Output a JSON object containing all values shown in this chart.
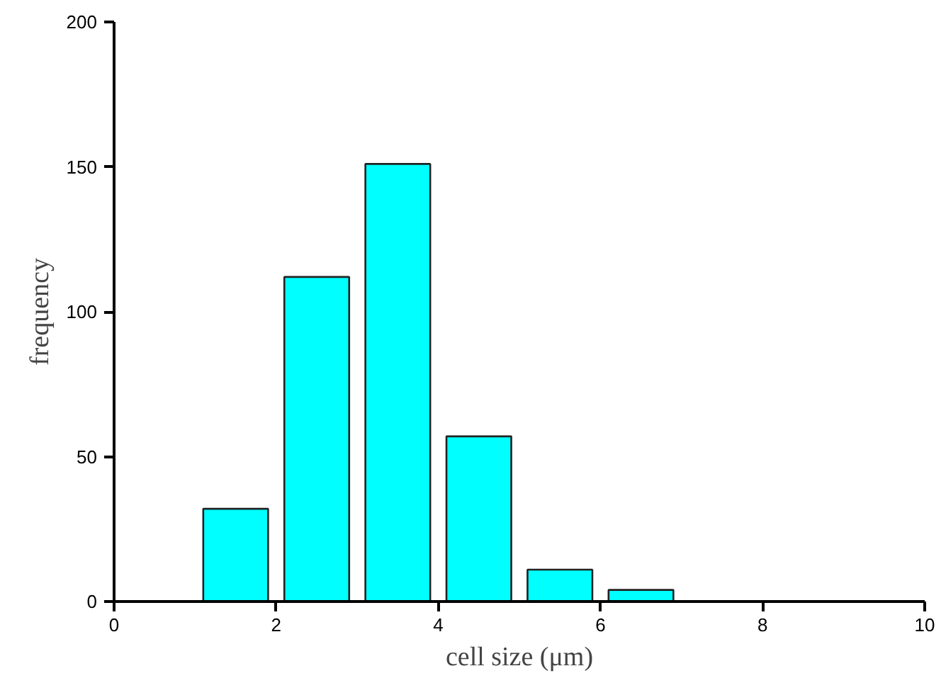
{
  "chart_data": {
    "type": "histogram",
    "xlabel": "cell size (μm)",
    "ylabel": "frequency",
    "bins": [
      1,
      2,
      3,
      4,
      5,
      6,
      7
    ],
    "values": [
      32,
      112,
      151,
      57,
      11,
      4
    ],
    "color": "#00ffff",
    "xlim": [
      0,
      10
    ],
    "xticks": [
      0,
      2,
      4,
      6,
      8,
      10
    ],
    "ylim": [
      0,
      200
    ],
    "yticks": [
      0,
      50,
      100,
      150,
      200
    ],
    "grid": false
  }
}
